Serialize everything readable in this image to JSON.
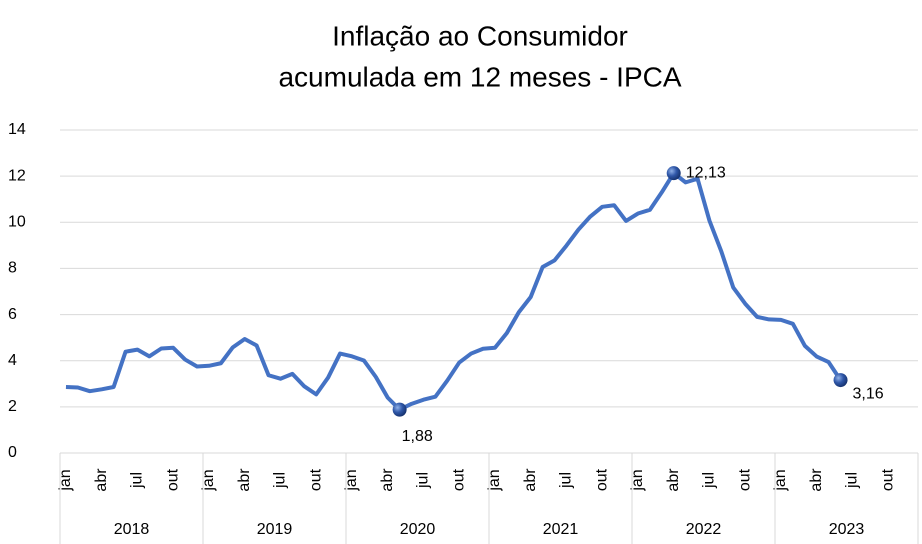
{
  "chart_data": {
    "type": "line",
    "title": [
      "Inflação ao Consumidor",
      "acumulada em 12 meses - IPCA"
    ],
    "categories": [
      "jan",
      null,
      null,
      "abr",
      null,
      null,
      "jul",
      null,
      null,
      "out",
      null,
      null,
      "jan",
      null,
      null,
      "abr",
      null,
      null,
      "jul",
      null,
      null,
      "out",
      null,
      null,
      "jan",
      null,
      null,
      "abr",
      null,
      null,
      "jul",
      null,
      null,
      "out",
      null,
      null,
      "jan",
      null,
      null,
      "abr",
      null,
      null,
      "jul",
      null,
      null,
      "out",
      null,
      null,
      "jan",
      null,
      null,
      "abr",
      null,
      null,
      "jul",
      null,
      null,
      "out",
      null,
      null,
      "jan",
      null,
      null,
      "abr",
      null,
      null,
      "jul",
      null,
      null,
      "out",
      null,
      null
    ],
    "groups": [
      {
        "label": "2018",
        "span": 12
      },
      {
        "label": "2019",
        "span": 12
      },
      {
        "label": "2020",
        "span": 12
      },
      {
        "label": "2021",
        "span": 12
      },
      {
        "label": "2022",
        "span": 12
      },
      {
        "label": "2023",
        "span": 12
      }
    ],
    "values": [
      2.86,
      2.84,
      2.68,
      2.76,
      2.86,
      4.39,
      4.48,
      4.19,
      4.53,
      4.56,
      4.05,
      3.75,
      3.78,
      3.89,
      4.58,
      4.94,
      4.66,
      3.37,
      3.22,
      3.43,
      2.89,
      2.54,
      3.27,
      4.31,
      4.19,
      4.01,
      3.3,
      2.4,
      1.88,
      2.13,
      2.31,
      2.44,
      3.14,
      3.92,
      4.31,
      4.52,
      4.56,
      5.2,
      6.1,
      6.76,
      8.06,
      8.35,
      8.99,
      9.68,
      10.25,
      10.67,
      10.74,
      10.06,
      10.38,
      10.54,
      11.3,
      12.13,
      11.73,
      11.89,
      10.07,
      8.73,
      7.17,
      6.47,
      5.9,
      5.79,
      5.77,
      5.6,
      4.65,
      4.18,
      3.94,
      3.16,
      null,
      null,
      null,
      null,
      null,
      null
    ],
    "value_labels": [
      null,
      null,
      null,
      null,
      null,
      null,
      null,
      null,
      null,
      null,
      null,
      null,
      null,
      null,
      null,
      null,
      null,
      null,
      null,
      null,
      null,
      null,
      null,
      null,
      null,
      null,
      null,
      null,
      "1,88",
      null,
      null,
      null,
      null,
      null,
      null,
      null,
      null,
      null,
      null,
      null,
      null,
      null,
      null,
      null,
      null,
      null,
      null,
      null,
      null,
      null,
      null,
      "12,13",
      null,
      null,
      null,
      null,
      null,
      null,
      null,
      null,
      null,
      null,
      null,
      null,
      null,
      "3,16",
      null,
      null,
      null,
      null,
      null,
      null
    ],
    "color": "#4472c4",
    "ylim": [
      0,
      14
    ],
    "yticks": [
      0,
      2,
      4,
      6,
      8,
      10,
      12,
      14
    ],
    "grid": true
  }
}
